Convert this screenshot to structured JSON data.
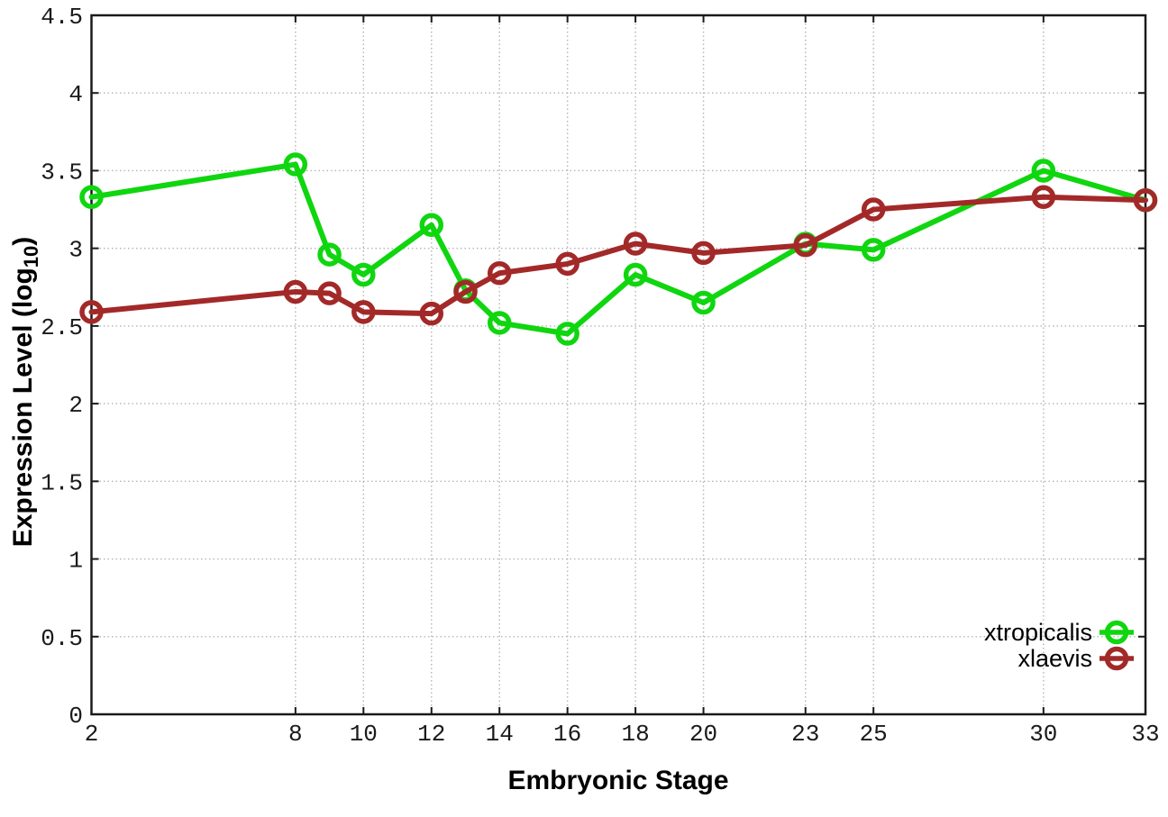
{
  "chart_data": {
    "type": "line",
    "title": "",
    "xlabel": "Embryonic Stage",
    "ylabel": "Expression Level (log10)",
    "ylabel_parts": {
      "prefix": "Expression Level (log",
      "subscript": "10",
      "suffix": ")"
    },
    "x": [
      2,
      8,
      9,
      10,
      12,
      13,
      14,
      16,
      18,
      20,
      23,
      25,
      30,
      33
    ],
    "series": [
      {
        "name": "xtropicalis",
        "color": "#0fd60f",
        "marker": "open-circle",
        "values": [
          3.33,
          3.54,
          2.96,
          2.83,
          3.15,
          2.73,
          2.52,
          2.45,
          2.83,
          2.65,
          3.03,
          2.99,
          3.5,
          3.31
        ]
      },
      {
        "name": "xlaevis",
        "color": "#a32929",
        "marker": "open-circle",
        "values": [
          2.59,
          2.72,
          2.71,
          2.59,
          2.58,
          2.72,
          2.84,
          2.9,
          3.03,
          2.97,
          3.02,
          3.25,
          3.33,
          3.31
        ]
      }
    ],
    "xlim": [
      2,
      33
    ],
    "ylim": [
      0,
      4.5
    ],
    "x_ticks": [
      2,
      8,
      10,
      12,
      14,
      16,
      18,
      20,
      23,
      25,
      30,
      33
    ],
    "x_tick_labels": [
      "2",
      "8",
      "10",
      "12",
      "14",
      "16",
      "18",
      "20",
      "23",
      "25",
      "30",
      "33"
    ],
    "y_ticks": [
      0,
      0.5,
      1,
      1.5,
      2,
      2.5,
      3,
      3.5,
      4,
      4.5
    ],
    "y_tick_labels": [
      "0",
      "0.5",
      "1",
      "1.5",
      "2",
      "2.5",
      "3",
      "3.5",
      "4",
      "4.5"
    ],
    "grid": true,
    "grid_style": "dotted",
    "legend_position": "bottom-right",
    "legend": [
      "xtropicalis",
      "xlaevis"
    ],
    "background_color": "#ffffff",
    "axis_color": "#1a1a1a",
    "grid_color": "#b5b5b5"
  }
}
